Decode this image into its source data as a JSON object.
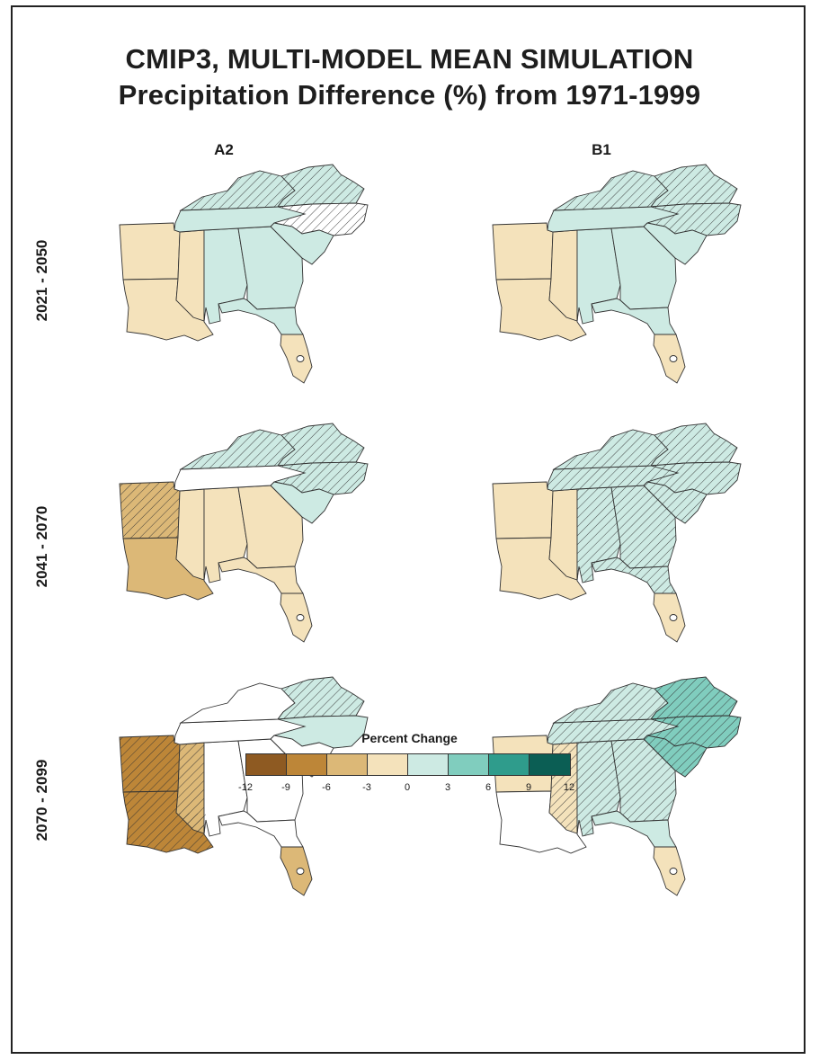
{
  "title_line1": "CMIP3, MULTI-MODEL MEAN SIMULATION",
  "title_line2": "Precipitation Difference (%) from 1971-1999",
  "columns": [
    "A2",
    "B1"
  ],
  "rows": [
    "2021 - 2050",
    "2041 - 2070",
    "2070 - 2099"
  ],
  "legend": {
    "title": "Percent Change",
    "ticks": [
      "-12",
      "-9",
      "-6",
      "-3",
      "0",
      "3",
      "6",
      "9",
      "12"
    ],
    "bins": [
      {
        "from": -12,
        "to": -9,
        "color": "#8e5a22"
      },
      {
        "from": -9,
        "to": -6,
        "color": "#bd8638"
      },
      {
        "from": -6,
        "to": -3,
        "color": "#dcb877"
      },
      {
        "from": -3,
        "to": 0,
        "color": "#f4e2bb"
      },
      {
        "from": 0,
        "to": 3,
        "color": "#cdeae3"
      },
      {
        "from": 3,
        "to": 6,
        "color": "#80cdbe"
      },
      {
        "from": 6,
        "to": 9,
        "color": "#2f9c8c"
      },
      {
        "from": 9,
        "to": 12,
        "color": "#0b5e54"
      }
    ]
  },
  "map_regions": [
    "arkansas",
    "louisiana",
    "mississippi",
    "alabama",
    "georgia",
    "florida_north",
    "florida_south",
    "tennessee",
    "kentucky",
    "virginia",
    "north_carolina",
    "south_carolina"
  ],
  "panels": [
    {
      "scenario": "A2",
      "period": "2021 - 2050",
      "regions": {
        "arkansas": "-3 to 0",
        "louisiana": "-3 to 0",
        "mississippi": "-3 to 0",
        "alabama": "0 to 3",
        "georgia": "0 to 3",
        "florida_north": "0 to 3",
        "florida_south": "-3 to 0",
        "tennessee": "0 to 3",
        "kentucky": "0 to 3",
        "virginia": "0 to 3",
        "north_carolina": "no change",
        "south_carolina": "0 to 3"
      },
      "hatched": [
        "kentucky",
        "virginia",
        "north_carolina"
      ]
    },
    {
      "scenario": "B1",
      "period": "2021 - 2050",
      "regions": {
        "arkansas": "-3 to 0",
        "louisiana": "-3 to 0",
        "mississippi": "-3 to 0",
        "alabama": "0 to 3",
        "georgia": "0 to 3",
        "florida_north": "0 to 3",
        "florida_south": "-3 to 0",
        "tennessee": "0 to 3",
        "kentucky": "0 to 3",
        "virginia": "0 to 3",
        "north_carolina": "0 to 3",
        "south_carolina": "0 to 3"
      },
      "hatched": [
        "kentucky",
        "virginia",
        "north_carolina"
      ]
    },
    {
      "scenario": "A2",
      "period": "2041 - 2070",
      "regions": {
        "arkansas": "-6 to -3",
        "louisiana": "-6 to -3",
        "mississippi": "-3 to 0",
        "alabama": "-3 to 0",
        "georgia": "-3 to 0",
        "florida_north": "-3 to 0",
        "florida_south": "-3 to 0",
        "tennessee": "no change",
        "kentucky": "0 to 3",
        "virginia": "0 to 3",
        "north_carolina": "0 to 3",
        "south_carolina": "0 to 3"
      },
      "hatched": [
        "arkansas",
        "kentucky",
        "virginia",
        "north_carolina"
      ]
    },
    {
      "scenario": "B1",
      "period": "2041 - 2070",
      "regions": {
        "arkansas": "-3 to 0",
        "louisiana": "-3 to 0",
        "mississippi": "-3 to 0",
        "alabama": "0 to 3",
        "georgia": "0 to 3",
        "florida_north": "0 to 3",
        "florida_south": "-3 to 0",
        "tennessee": "0 to 3",
        "kentucky": "0 to 3",
        "virginia": "0 to 3",
        "north_carolina": "0 to 3",
        "south_carolina": "0 to 3"
      },
      "hatched": [
        "kentucky",
        "virginia",
        "north_carolina",
        "tennessee",
        "georgia",
        "alabama",
        "south_carolina",
        "florida_north"
      ]
    },
    {
      "scenario": "A2",
      "period": "2070 - 2099",
      "regions": {
        "arkansas": "-9 to -6",
        "louisiana": "-9 to -6",
        "mississippi": "-6 to -3",
        "alabama": "no change",
        "georgia": "no change",
        "florida_north": "no change",
        "florida_south": "-6 to -3",
        "tennessee": "no change",
        "kentucky": "no change",
        "virginia": "0 to 3",
        "north_carolina": "0 to 3",
        "south_carolina": "no change"
      },
      "hatched": [
        "arkansas",
        "louisiana",
        "mississippi",
        "virginia"
      ]
    },
    {
      "scenario": "B1",
      "period": "2070 - 2099",
      "regions": {
        "arkansas": "-3 to 0",
        "louisiana": "no change",
        "mississippi": "-3 to 0",
        "alabama": "0 to 3",
        "georgia": "0 to 3",
        "florida_north": "0 to 3",
        "florida_south": "-3 to 0",
        "tennessee": "0 to 3",
        "kentucky": "0 to 3",
        "virginia": "3 to 6",
        "north_carolina": "3 to 6",
        "south_carolina": "3 to 6"
      },
      "hatched": [
        "kentucky",
        "virginia",
        "north_carolina",
        "tennessee",
        "georgia",
        "alabama",
        "south_carolina",
        "mississippi"
      ]
    }
  ]
}
